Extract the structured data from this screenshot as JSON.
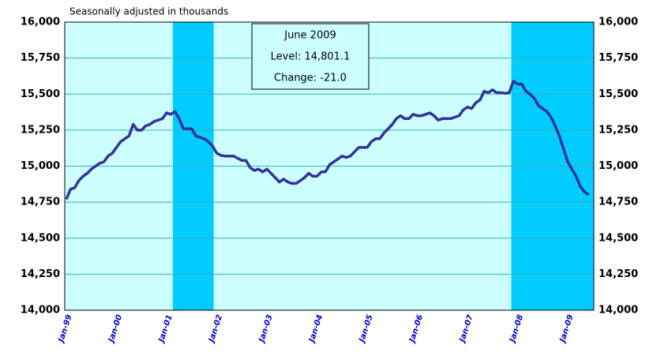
{
  "chart_data": {
    "type": "line",
    "subtitle": "Seasonally adjusted in thousands",
    "annotation": [
      "June 2009",
      "Level: 14,801.1",
      "Change: -21.0"
    ],
    "categories": [
      "Jan-99",
      null,
      null,
      null,
      null,
      null,
      null,
      null,
      null,
      null,
      null,
      null,
      "Jan-00",
      null,
      null,
      null,
      null,
      null,
      null,
      null,
      null,
      null,
      null,
      null,
      "Jan-01",
      null,
      null,
      null,
      null,
      null,
      null,
      null,
      null,
      null,
      null,
      null,
      "Jan-02",
      null,
      null,
      null,
      null,
      null,
      null,
      null,
      null,
      null,
      null,
      null,
      "Jan-03",
      null,
      null,
      null,
      null,
      null,
      null,
      null,
      null,
      null,
      null,
      null,
      "Jan-04",
      null,
      null,
      null,
      null,
      null,
      null,
      null,
      null,
      null,
      null,
      null,
      "Jan-05",
      null,
      null,
      null,
      null,
      null,
      null,
      null,
      null,
      null,
      null,
      null,
      "Jan-06",
      null,
      null,
      null,
      null,
      null,
      null,
      null,
      null,
      null,
      null,
      null,
      "Jan-07",
      null,
      null,
      null,
      null,
      null,
      null,
      null,
      null,
      null,
      null,
      null,
      "Jan-08",
      null,
      null,
      null,
      null,
      null,
      null,
      null,
      null,
      null,
      null,
      null,
      "Jan-09",
      null,
      null,
      null,
      null,
      null
    ],
    "series": [
      {
        "color": "#333399",
        "values": [
          14770,
          14840,
          14850,
          14900,
          14930,
          14950,
          14980,
          15000,
          15020,
          15030,
          15070,
          15090,
          15130,
          15170,
          15190,
          15210,
          15290,
          15250,
          15250,
          15280,
          15290,
          15310,
          15320,
          15330,
          15370,
          15360,
          15380,
          15330,
          15260,
          15260,
          15260,
          15210,
          15200,
          15190,
          15170,
          15140,
          15090,
          15075,
          15070,
          15070,
          15070,
          15055,
          15040,
          15040,
          14990,
          14970,
          14980,
          14960,
          14980,
          14950,
          14920,
          14890,
          14910,
          14890,
          14880,
          14880,
          14900,
          14920,
          14950,
          14930,
          14930,
          14960,
          14960,
          15010,
          15030,
          15050,
          15070,
          15060,
          15070,
          15100,
          15130,
          15130,
          15130,
          15170,
          15190,
          15190,
          15230,
          15260,
          15290,
          15330,
          15350,
          15330,
          15330,
          15360,
          15350,
          15350,
          15360,
          15370,
          15350,
          15320,
          15330,
          15330,
          15330,
          15340,
          15350,
          15390,
          15410,
          15400,
          15440,
          15460,
          15520,
          15510,
          15530,
          15510,
          15510,
          15505,
          15510,
          15590,
          15570,
          15570,
          15520,
          15500,
          15470,
          15420,
          15400,
          15380,
          15340,
          15280,
          15210,
          15120,
          15030,
          14980,
          14930,
          14860,
          14822,
          14801.1
        ]
      }
    ],
    "shaded_spans": [
      [
        26,
        34
      ],
      [
        107,
        125
      ]
    ],
    "shade_color": "#00ccff",
    "plot_color": "#ccffff",
    "ylim": [
      14000,
      16000
    ],
    "yticks": [
      {
        "value": 14000,
        "label": "14,000"
      },
      {
        "value": 14250,
        "label": "14,250"
      },
      {
        "value": 14500,
        "label": "14,500"
      },
      {
        "value": 14750,
        "label": "14,750"
      },
      {
        "value": 15000,
        "label": "15,000"
      },
      {
        "value": 15250,
        "label": "15,250"
      },
      {
        "value": 15500,
        "label": "15,500"
      },
      {
        "value": 15750,
        "label": "15,750"
      },
      {
        "value": 16000,
        "label": "16,000"
      }
    ],
    "grid": true
  }
}
